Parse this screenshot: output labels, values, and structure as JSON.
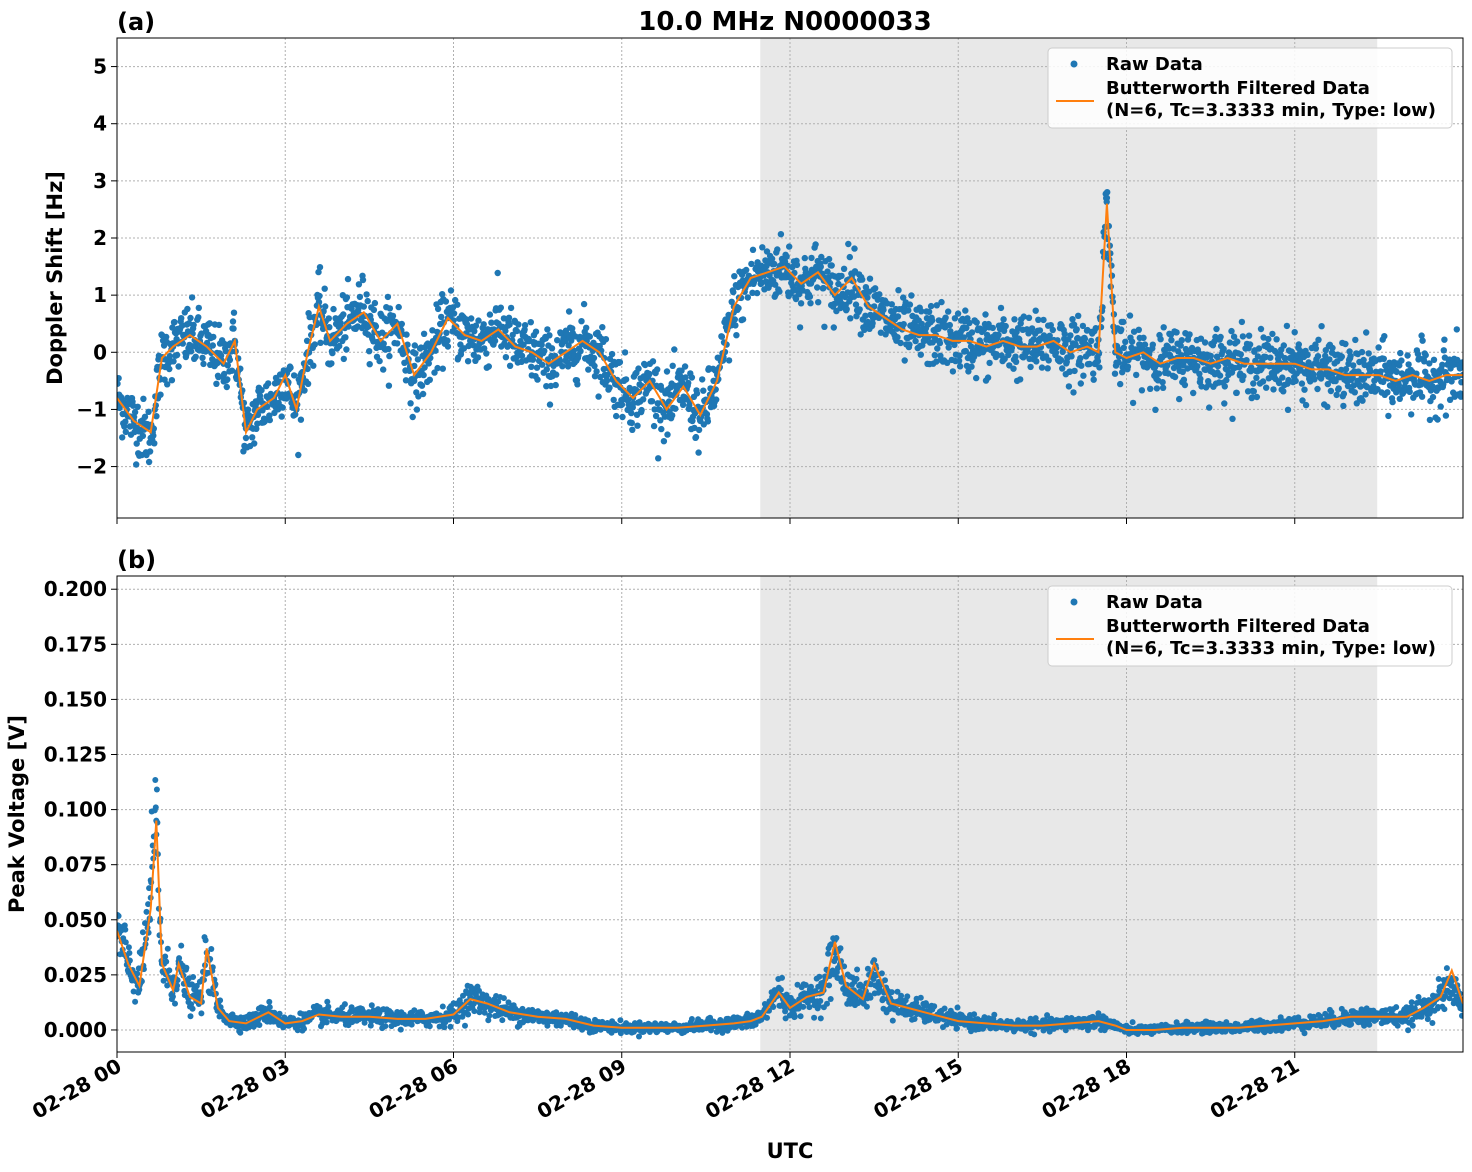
{
  "figure": {
    "title": "10.0 MHz N0000033",
    "xlabel": "UTC"
  },
  "colors": {
    "raw": "#1f77b4",
    "filtered": "#ff7f0e",
    "shade": "#e8e8e8",
    "grid": "#b0b0b0"
  },
  "legend": {
    "raw_label": "Raw Data",
    "filtered_label_line1": "Butterworth Filtered Data",
    "filtered_label_line2": "(N=6, Tc=3.3333 min, Type: low)",
    "placement": "top-right"
  },
  "chart_data": [
    {
      "type": "scatter",
      "panel_label": "(a)",
      "ylabel": "Doppler Shift [Hz]",
      "xlim_hours": [
        0,
        24
      ],
      "ylim": [
        -2.9,
        5.5
      ],
      "shaded_region_hours": [
        11.47,
        22.47
      ],
      "x_ticks": [
        "02-28 00",
        "02-28 03",
        "02-28 06",
        "02-28 09",
        "02-28 12",
        "02-28 15",
        "02-28 18",
        "02-28 21"
      ],
      "y_ticks": [
        "5",
        "4",
        "3",
        "2",
        "1",
        "0",
        "−1",
        "−2"
      ],
      "y_tick_values": [
        5,
        4,
        3,
        2,
        1,
        0,
        -1,
        -2
      ],
      "grid": true,
      "series": [
        {
          "name": "Raw Data",
          "x_hours": [
            0,
            0.3,
            0.6,
            0.8,
            1.0,
            1.3,
            1.6,
            1.9,
            2.1,
            2.3,
            2.5,
            2.8,
            3.0,
            3.2,
            3.4,
            3.6,
            3.8,
            4.1,
            4.4,
            4.7,
            5.0,
            5.3,
            5.6,
            5.9,
            6.2,
            6.5,
            6.8,
            7.1,
            7.4,
            7.7,
            8.0,
            8.3,
            8.6,
            8.9,
            9.2,
            9.5,
            9.8,
            10.1,
            10.4,
            10.7,
            11.0,
            11.3,
            11.6,
            11.9,
            12.2,
            12.5,
            12.8,
            13.1,
            13.4,
            13.7,
            14.0,
            14.3,
            14.6,
            14.9,
            15.2,
            15.5,
            15.8,
            16.1,
            16.4,
            16.7,
            17.0,
            17.3,
            17.5,
            17.65,
            17.8,
            18.0,
            18.3,
            18.6,
            18.9,
            19.2,
            19.5,
            19.8,
            20.1,
            20.4,
            20.7,
            21.0,
            21.3,
            21.6,
            21.9,
            22.2,
            22.5,
            22.8,
            23.1,
            23.4,
            23.7,
            24.0
          ],
          "values": [
            -0.8,
            -1.2,
            -1.5,
            -0.1,
            0.1,
            0.3,
            0.1,
            -0.2,
            0.2,
            -1.5,
            -1.0,
            -0.8,
            -0.4,
            -1.0,
            0.0,
            0.8,
            0.2,
            0.5,
            0.8,
            0.2,
            0.5,
            -0.5,
            0.0,
            0.6,
            0.3,
            0.2,
            0.5,
            0.1,
            0.0,
            -0.2,
            0.0,
            0.2,
            0.0,
            -0.5,
            -0.8,
            -0.5,
            -1.0,
            -0.6,
            -1.2,
            -0.5,
            0.8,
            1.3,
            1.4,
            1.5,
            1.2,
            1.4,
            1.0,
            1.3,
            0.8,
            0.6,
            0.4,
            0.3,
            0.3,
            0.2,
            0.2,
            0.1,
            0.2,
            0.1,
            0.1,
            0.2,
            0.0,
            0.1,
            0.0,
            2.7,
            0.0,
            -0.1,
            0.0,
            -0.2,
            -0.1,
            -0.1,
            -0.2,
            -0.1,
            -0.2,
            -0.2,
            -0.2,
            -0.2,
            -0.3,
            -0.3,
            -0.4,
            -0.4,
            -0.4,
            -0.5,
            -0.4,
            -0.5,
            -0.4,
            -0.4
          ]
        },
        {
          "name": "Butterworth Filtered Data",
          "x_hours": [
            0,
            0.3,
            0.6,
            0.8,
            1.0,
            1.3,
            1.6,
            1.9,
            2.1,
            2.3,
            2.5,
            2.8,
            3.0,
            3.2,
            3.4,
            3.6,
            3.8,
            4.1,
            4.4,
            4.7,
            5.0,
            5.3,
            5.6,
            5.9,
            6.2,
            6.5,
            6.8,
            7.1,
            7.4,
            7.7,
            8.0,
            8.3,
            8.6,
            8.9,
            9.2,
            9.5,
            9.8,
            10.1,
            10.4,
            10.7,
            11.0,
            11.3,
            11.6,
            11.9,
            12.2,
            12.5,
            12.8,
            13.1,
            13.4,
            13.7,
            14.0,
            14.3,
            14.6,
            14.9,
            15.2,
            15.5,
            15.8,
            16.1,
            16.4,
            16.7,
            17.0,
            17.3,
            17.5,
            17.65,
            17.8,
            18.0,
            18.3,
            18.6,
            18.9,
            19.2,
            19.5,
            19.8,
            20.1,
            20.4,
            20.7,
            21.0,
            21.3,
            21.6,
            21.9,
            22.2,
            22.5,
            22.8,
            23.1,
            23.4,
            23.7,
            24.0
          ],
          "values": [
            -0.8,
            -1.2,
            -1.4,
            -0.1,
            0.1,
            0.3,
            0.1,
            -0.2,
            0.2,
            -1.4,
            -1.0,
            -0.8,
            -0.4,
            -1.0,
            0.0,
            0.8,
            0.2,
            0.5,
            0.7,
            0.2,
            0.5,
            -0.4,
            0.0,
            0.6,
            0.3,
            0.2,
            0.4,
            0.1,
            0.0,
            -0.2,
            0.0,
            0.2,
            0.0,
            -0.5,
            -0.8,
            -0.5,
            -1.0,
            -0.6,
            -1.1,
            -0.5,
            0.8,
            1.3,
            1.4,
            1.5,
            1.2,
            1.4,
            1.0,
            1.3,
            0.8,
            0.6,
            0.4,
            0.3,
            0.3,
            0.2,
            0.2,
            0.1,
            0.2,
            0.1,
            0.1,
            0.2,
            0.0,
            0.1,
            0.0,
            2.6,
            0.0,
            -0.1,
            0.0,
            -0.2,
            -0.1,
            -0.1,
            -0.2,
            -0.1,
            -0.2,
            -0.2,
            -0.2,
            -0.2,
            -0.3,
            -0.3,
            -0.4,
            -0.4,
            -0.4,
            -0.5,
            -0.4,
            -0.5,
            -0.4,
            -0.4
          ]
        }
      ]
    },
    {
      "type": "scatter",
      "panel_label": "(b)",
      "ylabel": "Peak Voltage [V]",
      "xlim_hours": [
        0,
        24
      ],
      "ylim": [
        -0.01,
        0.206
      ],
      "shaded_region_hours": [
        11.47,
        22.47
      ],
      "x_ticks": [
        "02-28 00",
        "02-28 03",
        "02-28 06",
        "02-28 09",
        "02-28 12",
        "02-28 15",
        "02-28 18",
        "02-28 21"
      ],
      "y_ticks": [
        "0.200",
        "0.175",
        "0.150",
        "0.125",
        "0.100",
        "0.075",
        "0.050",
        "0.025",
        "0.000"
      ],
      "y_tick_values": [
        0.2,
        0.175,
        0.15,
        0.125,
        0.1,
        0.075,
        0.05,
        0.025,
        0.0
      ],
      "grid": true,
      "series": [
        {
          "name": "Raw Data",
          "x_hours": [
            0,
            0.2,
            0.4,
            0.6,
            0.7,
            0.8,
            1.0,
            1.1,
            1.3,
            1.5,
            1.6,
            1.8,
            2.0,
            2.3,
            2.7,
            3.0,
            3.3,
            3.6,
            4.0,
            4.5,
            5.0,
            5.5,
            6.0,
            6.3,
            6.6,
            7.0,
            7.5,
            8.0,
            8.5,
            9.0,
            9.5,
            10.0,
            10.5,
            11.0,
            11.3,
            11.5,
            11.8,
            12.0,
            12.3,
            12.6,
            12.8,
            13.0,
            13.3,
            13.5,
            13.8,
            14.1,
            14.4,
            14.7,
            15.0,
            15.5,
            16.0,
            16.5,
            17.0,
            17.5,
            17.8,
            18.0,
            18.5,
            19.0,
            19.5,
            20.0,
            20.5,
            21.0,
            21.5,
            22.0,
            22.5,
            23.0,
            23.3,
            23.6,
            23.8,
            24.0
          ],
          "values": [
            0.045,
            0.03,
            0.02,
            0.06,
            0.095,
            0.03,
            0.02,
            0.03,
            0.015,
            0.015,
            0.035,
            0.01,
            0.005,
            0.003,
            0.008,
            0.003,
            0.004,
            0.007,
            0.006,
            0.006,
            0.005,
            0.005,
            0.007,
            0.015,
            0.012,
            0.008,
            0.006,
            0.005,
            0.002,
            0.001,
            0.001,
            0.001,
            0.002,
            0.003,
            0.004,
            0.006,
            0.018,
            0.01,
            0.015,
            0.018,
            0.035,
            0.02,
            0.015,
            0.025,
            0.012,
            0.01,
            0.008,
            0.006,
            0.004,
            0.003,
            0.002,
            0.002,
            0.003,
            0.004,
            0.002,
            0.0,
            0.0,
            0.001,
            0.001,
            0.001,
            0.002,
            0.003,
            0.004,
            0.006,
            0.006,
            0.006,
            0.01,
            0.015,
            0.02,
            0.012
          ]
        },
        {
          "name": "Butterworth Filtered Data",
          "x_hours": [
            0,
            0.2,
            0.4,
            0.6,
            0.7,
            0.8,
            1.0,
            1.1,
            1.3,
            1.5,
            1.6,
            1.8,
            2.0,
            2.3,
            2.7,
            3.0,
            3.3,
            3.6,
            4.0,
            4.5,
            5.0,
            5.5,
            6.0,
            6.3,
            6.6,
            7.0,
            7.5,
            8.0,
            8.5,
            9.0,
            9.5,
            10.0,
            10.5,
            11.0,
            11.3,
            11.5,
            11.8,
            12.0,
            12.3,
            12.6,
            12.8,
            13.0,
            13.3,
            13.5,
            13.8,
            14.1,
            14.4,
            14.7,
            15.0,
            15.5,
            16.0,
            16.5,
            17.0,
            17.5,
            17.8,
            18.0,
            18.5,
            19.0,
            19.5,
            20.0,
            20.5,
            21.0,
            21.5,
            22.0,
            22.5,
            23.0,
            23.3,
            23.6,
            23.8,
            24.0
          ],
          "values": [
            0.045,
            0.03,
            0.02,
            0.055,
            0.095,
            0.03,
            0.018,
            0.03,
            0.015,
            0.012,
            0.037,
            0.01,
            0.004,
            0.003,
            0.008,
            0.003,
            0.004,
            0.007,
            0.006,
            0.006,
            0.005,
            0.005,
            0.007,
            0.014,
            0.012,
            0.008,
            0.006,
            0.005,
            0.002,
            0.001,
            0.001,
            0.001,
            0.002,
            0.003,
            0.004,
            0.006,
            0.017,
            0.01,
            0.015,
            0.017,
            0.04,
            0.02,
            0.014,
            0.03,
            0.012,
            0.01,
            0.008,
            0.006,
            0.004,
            0.003,
            0.002,
            0.002,
            0.003,
            0.004,
            0.002,
            0.0,
            0.0,
            0.001,
            0.001,
            0.001,
            0.002,
            0.003,
            0.004,
            0.006,
            0.006,
            0.006,
            0.01,
            0.015,
            0.027,
            0.012
          ]
        }
      ]
    }
  ]
}
